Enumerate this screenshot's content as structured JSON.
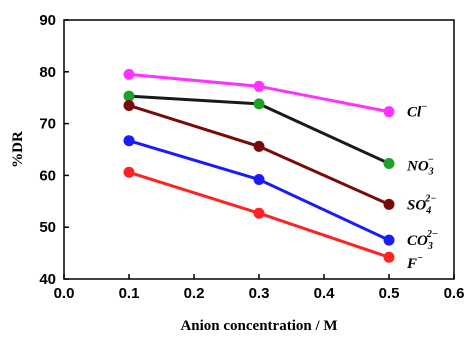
{
  "chart_data": {
    "type": "line",
    "title": "",
    "xlabel": "Anion concentration / M",
    "ylabel": "%DR",
    "xlim": [
      0.0,
      0.6
    ],
    "ylim": [
      40,
      90
    ],
    "x_ticks": [
      "0.0",
      "0.1",
      "0.2",
      "0.3",
      "0.4",
      "0.5",
      "0.6"
    ],
    "y_ticks": [
      "40",
      "50",
      "60",
      "70",
      "80",
      "90"
    ],
    "grid": false,
    "x": [
      0.1,
      0.3,
      0.5
    ],
    "series": [
      {
        "name": "Cl⁻",
        "label": {
          "base": "Cl",
          "sub": "",
          "sup": "−"
        },
        "color": "#ff33ff",
        "values": [
          79.5,
          77.2,
          72.3
        ]
      },
      {
        "name": "NO₃⁻",
        "label": {
          "base": "NO",
          "sub": "3",
          "sup": "−"
        },
        "color": "#1a1a1a",
        "values": [
          75.3,
          73.8,
          62.3
        ]
      },
      {
        "name": "SO₄²⁻",
        "label": {
          "base": "SO",
          "sub": "4",
          "sup": "2−"
        },
        "color": "#7a0a0a",
        "values": [
          73.5,
          65.6,
          54.4
        ]
      },
      {
        "name": "CO₃²⁻",
        "label": {
          "base": "CO",
          "sub": "3",
          "sup": "2−"
        },
        "color": "#1a1aff",
        "values": [
          66.7,
          59.2,
          47.5
        ]
      },
      {
        "name": "F⁻",
        "label": {
          "base": "F",
          "sub": "",
          "sup": "−"
        },
        "color": "#ff2222",
        "values": [
          60.6,
          52.7,
          44.2
        ]
      }
    ],
    "marker_colors": [
      "#ff33ff",
      "#1fa02a",
      "#7a0a0a",
      "#1a1aff",
      "#ff2222"
    ]
  }
}
